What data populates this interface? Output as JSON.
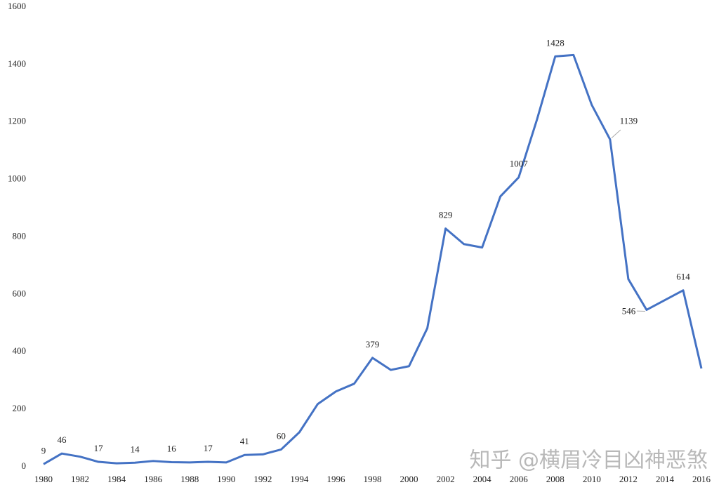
{
  "chart_data": {
    "type": "line",
    "x": [
      1980,
      1981,
      1982,
      1983,
      1984,
      1985,
      1986,
      1987,
      1988,
      1989,
      1990,
      1991,
      1992,
      1993,
      1994,
      1995,
      1996,
      1997,
      1998,
      1999,
      2000,
      2001,
      2002,
      2003,
      2004,
      2005,
      2006,
      2007,
      2008,
      2009,
      2010,
      2011,
      2012,
      2013,
      2014,
      2015,
      2016
    ],
    "series": [
      {
        "color": "#4472c4",
        "values": [
          9,
          46,
          35,
          17,
          12,
          14,
          20,
          16,
          15,
          17,
          15,
          41,
          43,
          60,
          120,
          218,
          262,
          289,
          379,
          337,
          350,
          482,
          829,
          775,
          763,
          941,
          1007,
          1208,
          1428,
          1433,
          1259,
          1139,
          653,
          546,
          580,
          614,
          342
        ],
        "value_labels": [
          "9",
          "46",
          null,
          "17",
          null,
          "14",
          null,
          "16",
          null,
          "17",
          null,
          "41",
          null,
          "60",
          null,
          null,
          null,
          null,
          "379",
          null,
          null,
          null,
          "829",
          null,
          null,
          null,
          "1007",
          null,
          "1428",
          null,
          null,
          "1139",
          null,
          "546",
          null,
          "614",
          null
        ]
      }
    ],
    "xlim": [
      1980,
      2016
    ],
    "xticks": [
      1980,
      1982,
      1984,
      1986,
      1988,
      1990,
      1992,
      1994,
      1996,
      1998,
      2000,
      2002,
      2004,
      2006,
      2008,
      2010,
      2012,
      2014,
      2016
    ],
    "ylim": [
      0,
      1600
    ],
    "yticks": [
      0,
      200,
      400,
      600,
      800,
      1000,
      1200,
      1400,
      1600
    ],
    "grid": false,
    "watermark": "知乎 @横眉冷目凶神恶煞"
  }
}
